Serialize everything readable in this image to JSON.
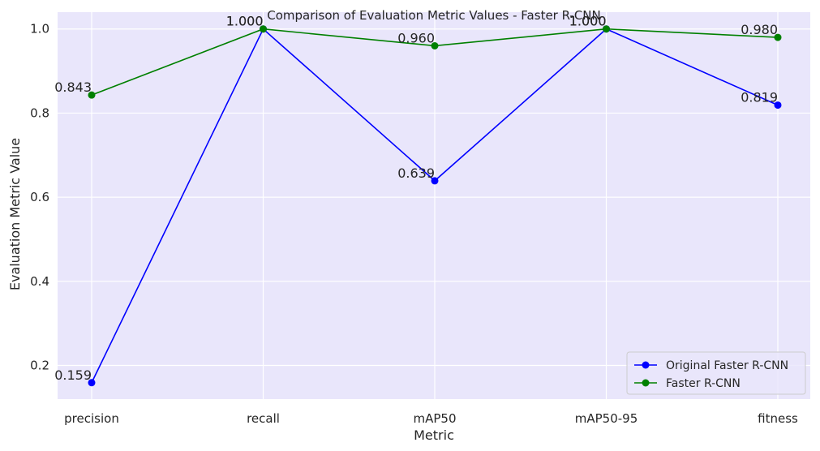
{
  "chart_data": {
    "type": "line",
    "title": "Comparison of Evaluation Metric Values - Faster R-CNN",
    "xlabel": "Metric",
    "ylabel": "Evaluation Metric Value",
    "categories": [
      "precision",
      "recall",
      "mAP50",
      "mAP50-95",
      "fitness"
    ],
    "yticks": [
      "0.2",
      "0.4",
      "0.6",
      "0.8",
      "1.0"
    ],
    "ylim": [
      0.12,
      1.04
    ],
    "grid": true,
    "legend_position": "bottom-right",
    "background_color": "#e9e6fb",
    "series": [
      {
        "name": "Original Faster R-CNN",
        "color": "#0000ff",
        "values": [
          0.159,
          1.0,
          0.639,
          1.0,
          0.819
        ],
        "labels": [
          "0.159",
          "1.000",
          "0.639",
          "1.000",
          "0.819"
        ]
      },
      {
        "name": "Faster R-CNN",
        "color": "#008000",
        "values": [
          0.843,
          1.0,
          0.96,
          1.0,
          0.98
        ],
        "labels": [
          "0.843",
          "1.000",
          "0.960",
          "1.000",
          "0.980"
        ]
      }
    ]
  }
}
